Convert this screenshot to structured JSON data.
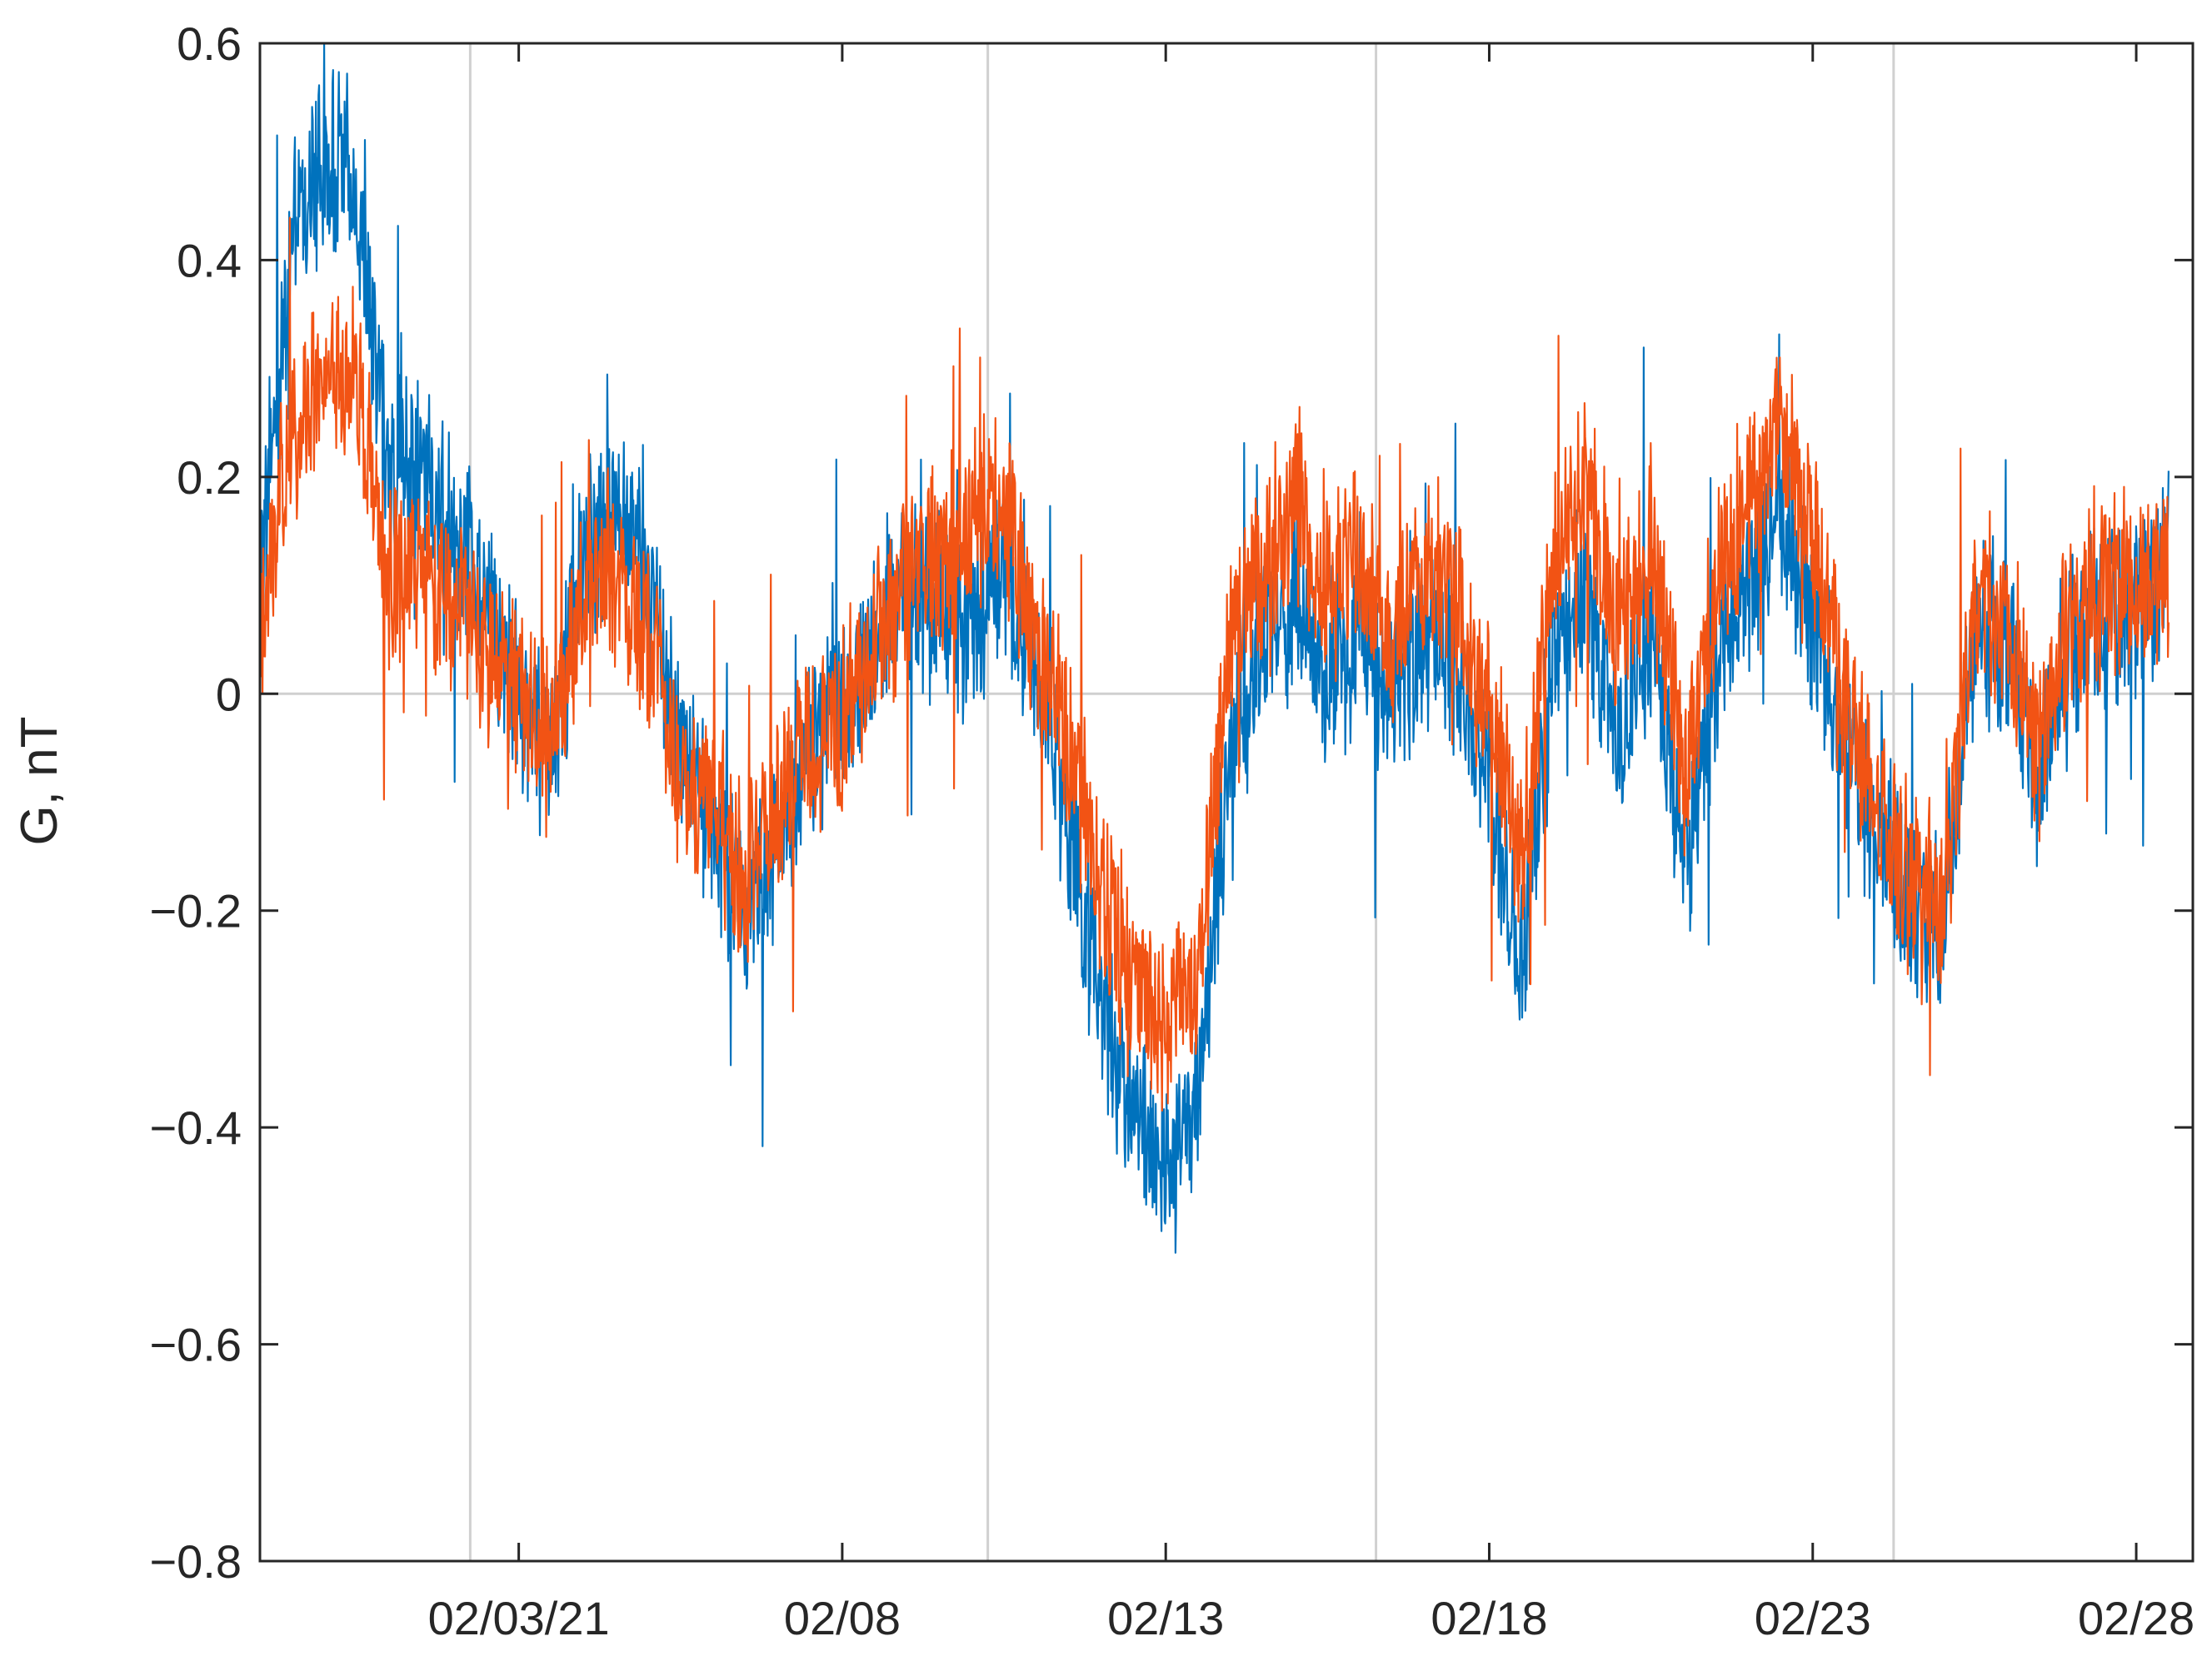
{
  "chart_data": {
    "type": "line",
    "title": "",
    "xlabel": "",
    "ylabel": "G, nT",
    "ylim": [
      -0.8,
      0.6
    ],
    "xlim": [
      "2021-01-30",
      "2021-02-28T21:00"
    ],
    "yticks": [
      -0.8,
      -0.6,
      -0.4,
      -0.2,
      0,
      0.2,
      0.4,
      0.6
    ],
    "ytick_labels": [
      "−0.8",
      "−0.6",
      "−0.4",
      "−0.2",
      "0",
      "0.2",
      "0.4",
      "0.6"
    ],
    "xticks": [
      "2021-02-03",
      "2021-02-08",
      "2021-02-13",
      "2021-02-18",
      "2021-02-23",
      "2021-02-28"
    ],
    "xtick_labels": [
      "02/03/21",
      "02/08",
      "02/13",
      "02/18",
      "02/23",
      "02/28"
    ],
    "grid_x": [
      "2021-02-02T06:00",
      "2021-02-10T06:00",
      "2021-02-16T06:00",
      "2021-02-24T06:00"
    ],
    "grid_y": [
      0
    ],
    "legend": "none",
    "colors": {
      "series1": "#0072BD",
      "series2": "#F25314",
      "grid": "#d0d0d0",
      "axis": "#262626"
    },
    "series": [
      {
        "color": "#0072BD",
        "x": [
          "2021-01-30",
          "2021-01-30T12:00",
          "2021-01-31",
          "2021-01-31T12:00",
          "2021-02-01",
          "2021-02-01T12:00",
          "2021-02-02",
          "2021-02-02T12:00",
          "2021-02-03",
          "2021-02-03T12:00",
          "2021-02-04",
          "2021-02-04T12:00",
          "2021-02-05",
          "2021-02-05T12:00",
          "2021-02-06",
          "2021-02-06T12:00",
          "2021-02-07",
          "2021-02-07T12:00",
          "2021-02-08",
          "2021-02-08T12:00",
          "2021-02-09",
          "2021-02-09T12:00",
          "2021-02-10",
          "2021-02-10T12:00",
          "2021-02-11",
          "2021-02-11T12:00",
          "2021-02-12",
          "2021-02-12T12:00",
          "2021-02-13",
          "2021-02-13T12:00",
          "2021-02-14",
          "2021-02-14T12:00",
          "2021-02-15",
          "2021-02-15T12:00",
          "2021-02-16",
          "2021-02-16T12:00",
          "2021-02-17",
          "2021-02-17T12:00",
          "2021-02-18",
          "2021-02-18T12:00",
          "2021-02-19",
          "2021-02-19T12:00",
          "2021-02-20",
          "2021-02-20T12:00",
          "2021-02-21",
          "2021-02-21T12:00",
          "2021-02-22",
          "2021-02-22T12:00",
          "2021-02-23",
          "2021-02-23T12:00",
          "2021-02-24",
          "2021-02-24T12:00",
          "2021-02-25",
          "2021-02-25T12:00",
          "2021-02-26",
          "2021-02-26T12:00",
          "2021-02-27",
          "2021-02-27T12:00",
          "2021-02-28",
          "2021-02-28T12:00"
        ],
        "y": [
          0.1,
          0.42,
          0.5,
          0.46,
          0.2,
          0.2,
          0.15,
          0.1,
          0.0,
          -0.05,
          0.12,
          0.18,
          0.1,
          -0.05,
          -0.12,
          -0.2,
          -0.15,
          -0.05,
          -0.02,
          0.05,
          0.1,
          0.08,
          0.05,
          0.12,
          0.02,
          -0.12,
          -0.28,
          -0.38,
          -0.45,
          -0.38,
          -0.05,
          0.05,
          0.08,
          0.02,
          0.06,
          0.0,
          0.05,
          0.02,
          -0.08,
          -0.25,
          0.05,
          0.1,
          -0.05,
          0.05,
          -0.15,
          0.02,
          0.1,
          0.18,
          0.06,
          -0.05,
          -0.12,
          -0.2,
          -0.22,
          0.05,
          0.05,
          -0.1,
          0.05,
          0.07,
          0.08,
          0.12
        ]
      },
      {
        "color": "#F25314",
        "x": [
          "2021-01-30",
          "2021-01-30T12:00",
          "2021-01-31",
          "2021-01-31T12:00",
          "2021-02-01",
          "2021-02-01T12:00",
          "2021-02-02",
          "2021-02-02T12:00",
          "2021-02-03",
          "2021-02-03T12:00",
          "2021-02-04",
          "2021-02-04T12:00",
          "2021-02-05",
          "2021-02-05T12:00",
          "2021-02-06",
          "2021-02-06T12:00",
          "2021-02-07",
          "2021-02-07T12:00",
          "2021-02-08",
          "2021-02-08T12:00",
          "2021-02-09",
          "2021-02-09T12:00",
          "2021-02-10",
          "2021-02-10T12:00",
          "2021-02-11",
          "2021-02-11T12:00",
          "2021-02-12",
          "2021-02-12T12:00",
          "2021-02-13",
          "2021-02-13T12:00",
          "2021-02-14",
          "2021-02-14T12:00",
          "2021-02-15",
          "2021-02-15T12:00",
          "2021-02-16",
          "2021-02-16T12:00",
          "2021-02-17",
          "2021-02-17T12:00",
          "2021-02-18",
          "2021-02-18T12:00",
          "2021-02-19",
          "2021-02-19T12:00",
          "2021-02-20",
          "2021-02-20T12:00",
          "2021-02-21",
          "2021-02-21T12:00",
          "2021-02-22",
          "2021-02-22T12:00",
          "2021-02-23",
          "2021-02-23T12:00",
          "2021-02-24",
          "2021-02-24T12:00",
          "2021-02-25",
          "2021-02-25T12:00",
          "2021-02-26",
          "2021-02-26T12:00",
          "2021-02-27",
          "2021-02-27T12:00",
          "2021-02-28",
          "2021-02-28T12:00"
        ],
        "y": [
          0.05,
          0.25,
          0.3,
          0.28,
          0.1,
          0.1,
          0.08,
          0.05,
          0.0,
          -0.05,
          0.1,
          0.12,
          0.05,
          -0.08,
          -0.1,
          -0.18,
          -0.1,
          -0.05,
          -0.03,
          0.05,
          0.12,
          0.12,
          0.15,
          0.18,
          0.05,
          -0.05,
          -0.18,
          -0.28,
          -0.3,
          -0.25,
          0.05,
          0.12,
          0.18,
          0.1,
          0.12,
          0.05,
          0.12,
          0.08,
          -0.02,
          -0.15,
          0.12,
          0.2,
          0.05,
          0.15,
          -0.08,
          0.1,
          0.18,
          0.25,
          0.12,
          0.0,
          -0.1,
          -0.18,
          -0.2,
          0.08,
          0.08,
          -0.05,
          0.08,
          0.1,
          0.1,
          0.12
        ]
      }
    ]
  }
}
